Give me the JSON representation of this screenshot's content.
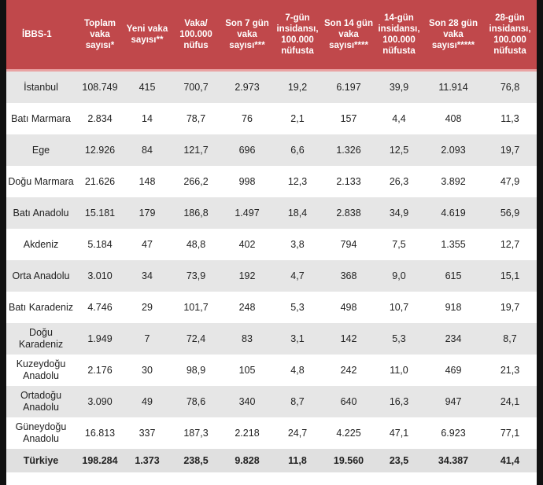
{
  "headers": [
    "İBBS-1",
    "Toplam vaka sayısı*",
    "Yeni vaka sayısı**",
    "Vaka/ 100.000 nüfus",
    "Son 7 gün vaka sayısı***",
    "7-gün insidansı, 100.000 nüfusta",
    "Son 14 gün vaka sayısı****",
    "14-gün insidansı, 100.000 nüfusta",
    "Son 28 gün vaka sayısı*****",
    "28-gün insidansı, 100.000 nüfusta"
  ],
  "rows": [
    [
      "İstanbul",
      "108.749",
      "415",
      "700,7",
      "2.973",
      "19,2",
      "6.197",
      "39,9",
      "11.914",
      "76,8"
    ],
    [
      "Batı Marmara",
      "2.834",
      "14",
      "78,7",
      "76",
      "2,1",
      "157",
      "4,4",
      "408",
      "11,3"
    ],
    [
      "Ege",
      "12.926",
      "84",
      "121,7",
      "696",
      "6,6",
      "1.326",
      "12,5",
      "2.093",
      "19,7"
    ],
    [
      "Doğu Marmara",
      "21.626",
      "148",
      "266,2",
      "998",
      "12,3",
      "2.133",
      "26,3",
      "3.892",
      "47,9"
    ],
    [
      "Batı Anadolu",
      "15.181",
      "179",
      "186,8",
      "1.497",
      "18,4",
      "2.838",
      "34,9",
      "4.619",
      "56,9"
    ],
    [
      "Akdeniz",
      "5.184",
      "47",
      "48,8",
      "402",
      "3,8",
      "794",
      "7,5",
      "1.355",
      "12,7"
    ],
    [
      "Orta Anadolu",
      "3.010",
      "34",
      "73,9",
      "192",
      "4,7",
      "368",
      "9,0",
      "615",
      "15,1"
    ],
    [
      "Batı Karadeniz",
      "4.746",
      "29",
      "101,7",
      "248",
      "5,3",
      "498",
      "10,7",
      "918",
      "19,7"
    ],
    [
      "Doğu Karadeniz",
      "1.949",
      "7",
      "72,4",
      "83",
      "3,1",
      "142",
      "5,3",
      "234",
      "8,7"
    ],
    [
      "Kuzeydoğu Anadolu",
      "2.176",
      "30",
      "98,9",
      "105",
      "4,8",
      "242",
      "11,0",
      "469",
      "21,3"
    ],
    [
      "Ortadoğu Anadolu",
      "3.090",
      "49",
      "78,6",
      "340",
      "8,7",
      "640",
      "16,3",
      "947",
      "24,1"
    ],
    [
      "Güneydoğu Anadolu",
      "16.813",
      "337",
      "187,3",
      "2.218",
      "24,7",
      "4.225",
      "47,1",
      "6.923",
      "77,1"
    ]
  ],
  "total": [
    "Türkiye",
    "198.284",
    "1.373",
    "238,5",
    "9.828",
    "11,8",
    "19.560",
    "23,5",
    "34.387",
    "41,4"
  ],
  "colors": {
    "header": "#c0484b",
    "row_alt": "#e6e6e6"
  }
}
